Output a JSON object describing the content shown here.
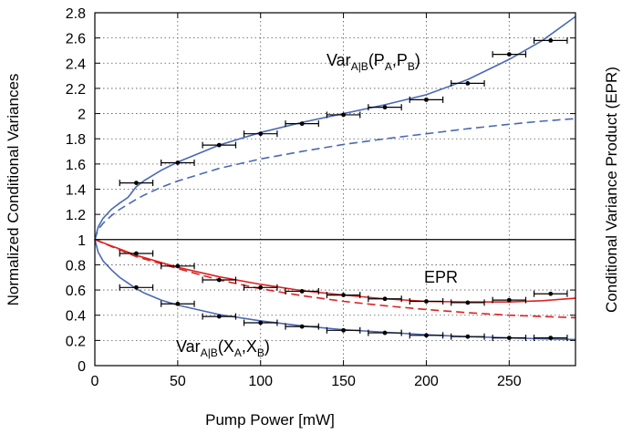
{
  "chart_data": {
    "type": "scatter",
    "title": "",
    "xlabel": "Pump Power [mW]",
    "ylabel_left": "Normalized Conditional Variances",
    "ylabel_right": "Conditional Variance Product (EPR)",
    "xlim": [
      0,
      290
    ],
    "ylim": [
      0,
      2.8
    ],
    "xticks": [
      0,
      50,
      100,
      150,
      200,
      250
    ],
    "yticks": [
      0,
      0.2,
      0.4,
      0.6,
      0.8,
      1,
      1.2,
      1.4,
      1.6,
      1.8,
      2,
      2.2,
      2.4,
      2.6,
      2.8
    ],
    "grid": true,
    "reference_line_y": 1,
    "annotations": {
      "var_p": {
        "base": "Var",
        "sub": "A|B",
        "mid": "(P",
        "sub2": "A",
        "comma": ",P",
        "sub3": "B",
        "end": ")"
      },
      "var_x": {
        "base": "Var",
        "sub": "A|B",
        "mid": "(X",
        "sub2": "A",
        "comma": ",X",
        "sub3": "B",
        "end": ")"
      },
      "epr": "EPR"
    },
    "colors": {
      "theory": "#4a68b5",
      "epr": "#dd2222",
      "data": "#000000"
    },
    "series": [
      {
        "name": "Var_A|B(P_A,P_B)",
        "points": [
          {
            "x": 25,
            "y": 1.45,
            "xerr": 10
          },
          {
            "x": 50,
            "y": 1.61,
            "xerr": 10
          },
          {
            "x": 75,
            "y": 1.75,
            "xerr": 10
          },
          {
            "x": 100,
            "y": 1.84,
            "xerr": 10
          },
          {
            "x": 125,
            "y": 1.92,
            "xerr": 10
          },
          {
            "x": 150,
            "y": 1.99,
            "xerr": 10
          },
          {
            "x": 175,
            "y": 2.05,
            "xerr": 10
          },
          {
            "x": 200,
            "y": 2.11,
            "xerr": 10
          },
          {
            "x": 225,
            "y": 2.24,
            "xerr": 10
          },
          {
            "x": 250,
            "y": 2.47,
            "xerr": 10
          },
          {
            "x": 275,
            "y": 2.58,
            "xerr": 10
          }
        ]
      },
      {
        "name": "EPR",
        "points": [
          {
            "x": 25,
            "y": 0.89,
            "xerr": 10
          },
          {
            "x": 50,
            "y": 0.79,
            "xerr": 10
          },
          {
            "x": 75,
            "y": 0.68,
            "xerr": 10
          },
          {
            "x": 100,
            "y": 0.62,
            "xerr": 10
          },
          {
            "x": 125,
            "y": 0.59,
            "xerr": 10
          },
          {
            "x": 150,
            "y": 0.56,
            "xerr": 10
          },
          {
            "x": 175,
            "y": 0.53,
            "xerr": 10
          },
          {
            "x": 200,
            "y": 0.51,
            "xerr": 10
          },
          {
            "x": 225,
            "y": 0.5,
            "xerr": 10
          },
          {
            "x": 250,
            "y": 0.52,
            "xerr": 10
          },
          {
            "x": 275,
            "y": 0.57,
            "xerr": 10
          }
        ]
      },
      {
        "name": "Var_A|B(X_A,X_B)",
        "points": [
          {
            "x": 25,
            "y": 0.62,
            "xerr": 10
          },
          {
            "x": 50,
            "y": 0.49,
            "xerr": 10
          },
          {
            "x": 75,
            "y": 0.39,
            "xerr": 10
          },
          {
            "x": 100,
            "y": 0.34,
            "xerr": 10
          },
          {
            "x": 125,
            "y": 0.31,
            "xerr": 10
          },
          {
            "x": 150,
            "y": 0.28,
            "xerr": 10
          },
          {
            "x": 175,
            "y": 0.26,
            "xerr": 10
          },
          {
            "x": 200,
            "y": 0.24,
            "xerr": 10
          },
          {
            "x": 225,
            "y": 0.23,
            "xerr": 10
          },
          {
            "x": 250,
            "y": 0.22,
            "xerr": 10
          },
          {
            "x": 275,
            "y": 0.22,
            "xerr": 10
          }
        ]
      }
    ],
    "curves": [
      {
        "id": "p-solid",
        "color": "theory",
        "dashed": false,
        "points": [
          [
            0,
            1
          ],
          [
            2,
            1.1
          ],
          [
            5,
            1.17
          ],
          [
            10,
            1.24
          ],
          [
            15,
            1.29
          ],
          [
            20,
            1.335
          ],
          [
            25,
            1.42
          ],
          [
            30,
            1.47
          ],
          [
            40,
            1.55
          ],
          [
            50,
            1.615
          ],
          [
            75,
            1.75
          ],
          [
            100,
            1.85
          ],
          [
            125,
            1.93
          ],
          [
            150,
            2.0
          ],
          [
            175,
            2.07
          ],
          [
            200,
            2.15
          ],
          [
            225,
            2.27
          ],
          [
            250,
            2.43
          ],
          [
            270,
            2.58
          ],
          [
            290,
            2.77
          ]
        ]
      },
      {
        "id": "p-dashed",
        "color": "theory",
        "dashed": true,
        "points": [
          [
            0,
            1
          ],
          [
            2,
            1.08
          ],
          [
            5,
            1.13
          ],
          [
            10,
            1.19
          ],
          [
            15,
            1.24
          ],
          [
            20,
            1.28
          ],
          [
            25,
            1.32
          ],
          [
            30,
            1.355
          ],
          [
            40,
            1.415
          ],
          [
            50,
            1.465
          ],
          [
            75,
            1.565
          ],
          [
            100,
            1.64
          ],
          [
            125,
            1.7
          ],
          [
            150,
            1.755
          ],
          [
            175,
            1.8
          ],
          [
            200,
            1.84
          ],
          [
            225,
            1.88
          ],
          [
            250,
            1.915
          ],
          [
            270,
            1.94
          ],
          [
            290,
            1.96
          ]
        ]
      },
      {
        "id": "x-solid",
        "color": "theory",
        "dashed": false,
        "points": [
          [
            0,
            1
          ],
          [
            2,
            0.9
          ],
          [
            5,
            0.83
          ],
          [
            10,
            0.76
          ],
          [
            15,
            0.7
          ],
          [
            20,
            0.655
          ],
          [
            25,
            0.61
          ],
          [
            30,
            0.575
          ],
          [
            40,
            0.52
          ],
          [
            50,
            0.48
          ],
          [
            75,
            0.405
          ],
          [
            100,
            0.355
          ],
          [
            125,
            0.315
          ],
          [
            150,
            0.285
          ],
          [
            175,
            0.265
          ],
          [
            200,
            0.245
          ],
          [
            225,
            0.23
          ],
          [
            250,
            0.22
          ],
          [
            270,
            0.213
          ],
          [
            290,
            0.207
          ]
        ]
      },
      {
        "id": "epr-solid",
        "color": "epr",
        "dashed": false,
        "points": [
          [
            0,
            1
          ],
          [
            10,
            0.95
          ],
          [
            25,
            0.875
          ],
          [
            50,
            0.78
          ],
          [
            75,
            0.705
          ],
          [
            100,
            0.645
          ],
          [
            125,
            0.595
          ],
          [
            150,
            0.56
          ],
          [
            175,
            0.53
          ],
          [
            200,
            0.51
          ],
          [
            225,
            0.505
          ],
          [
            250,
            0.505
          ],
          [
            270,
            0.515
          ],
          [
            290,
            0.535
          ]
        ]
      },
      {
        "id": "epr-dashed",
        "color": "epr",
        "dashed": true,
        "points": [
          [
            0,
            1
          ],
          [
            10,
            0.945
          ],
          [
            25,
            0.865
          ],
          [
            50,
            0.77
          ],
          [
            75,
            0.68
          ],
          [
            100,
            0.61
          ],
          [
            125,
            0.555
          ],
          [
            150,
            0.51
          ],
          [
            175,
            0.475
          ],
          [
            200,
            0.445
          ],
          [
            225,
            0.42
          ],
          [
            250,
            0.4
          ],
          [
            270,
            0.39
          ],
          [
            290,
            0.38
          ]
        ]
      }
    ]
  }
}
